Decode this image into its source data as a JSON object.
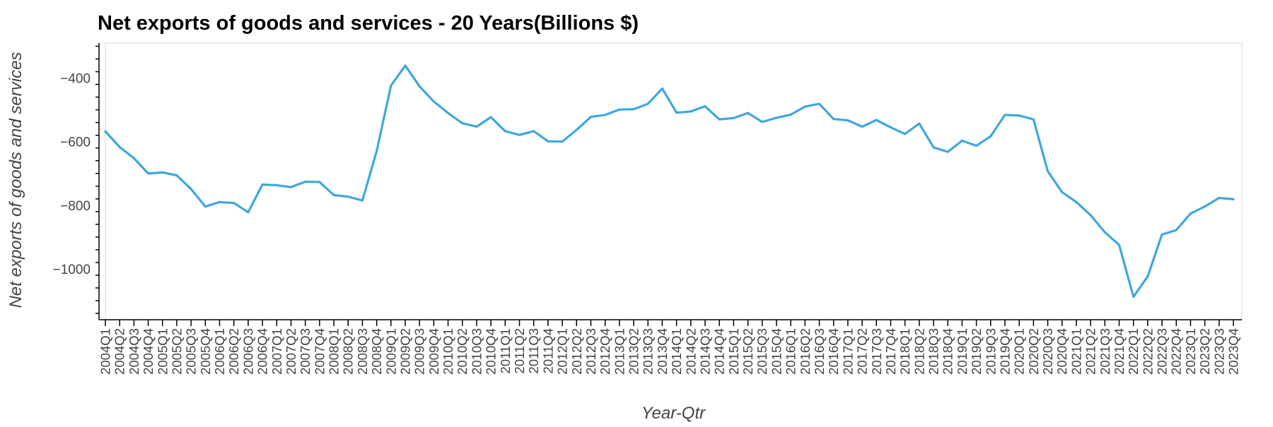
{
  "chart_data": {
    "type": "line",
    "title": "Net exports of goods and services - 20 Years(Billions $)",
    "xlabel": "Year-Qtr",
    "ylabel": "Net exports of goods and services",
    "ylim": [
      -1160,
      -290
    ],
    "yticks": [
      -400,
      -600,
      -800,
      -1000
    ],
    "grid": false,
    "line_color": "#3fa7dc",
    "categories": [
      "2004Q1",
      "2004Q2",
      "2004Q3",
      "2004Q4",
      "2005Q1",
      "2005Q2",
      "2005Q3",
      "2005Q4",
      "2006Q1",
      "2006Q2",
      "2006Q3",
      "2006Q4",
      "2007Q1",
      "2007Q2",
      "2007Q3",
      "2007Q4",
      "2008Q1",
      "2008Q2",
      "2008Q3",
      "2008Q4",
      "2009Q1",
      "2009Q2",
      "2009Q3",
      "2009Q4",
      "2010Q1",
      "2010Q2",
      "2010Q3",
      "2010Q4",
      "2011Q1",
      "2011Q2",
      "2011Q3",
      "2011Q4",
      "2012Q1",
      "2012Q2",
      "2012Q3",
      "2012Q4",
      "2013Q1",
      "2013Q2",
      "2013Q3",
      "2013Q4",
      "2014Q1",
      "2014Q2",
      "2014Q3",
      "2014Q4",
      "2015Q1",
      "2015Q2",
      "2015Q3",
      "2015Q4",
      "2016Q1",
      "2016Q2",
      "2016Q3",
      "2016Q4",
      "2017Q1",
      "2017Q2",
      "2017Q3",
      "2017Q4",
      "2018Q1",
      "2018Q2",
      "2018Q3",
      "2018Q4",
      "2019Q1",
      "2019Q2",
      "2019Q3",
      "2019Q4",
      "2020Q1",
      "2020Q2",
      "2020Q3",
      "2020Q4",
      "2021Q1",
      "2021Q2",
      "2021Q3",
      "2021Q4",
      "2022Q1",
      "2022Q2",
      "2022Q3",
      "2022Q4",
      "2023Q1",
      "2023Q2",
      "2023Q3",
      "2023Q4"
    ],
    "values": [
      -568,
      -617,
      -652,
      -700,
      -697,
      -706,
      -749,
      -804,
      -790,
      -793,
      -822,
      -735,
      -737,
      -743,
      -726,
      -727,
      -768,
      -773,
      -785,
      -630,
      -424,
      -361,
      -426,
      -474,
      -510,
      -542,
      -553,
      -523,
      -567,
      -579,
      -567,
      -599,
      -600,
      -563,
      -522,
      -516,
      -499,
      -498,
      -481,
      -433,
      -509,
      -505,
      -489,
      -530,
      -526,
      -510,
      -538,
      -525,
      -515,
      -490,
      -481,
      -529,
      -533,
      -553,
      -532,
      -555,
      -576,
      -543,
      -618,
      -632,
      -597,
      -613,
      -583,
      -516,
      -518,
      -530,
      -693,
      -759,
      -790,
      -831,
      -885,
      -925,
      -1088,
      -1024,
      -892,
      -878,
      -826,
      -804,
      -777,
      -781
    ]
  }
}
